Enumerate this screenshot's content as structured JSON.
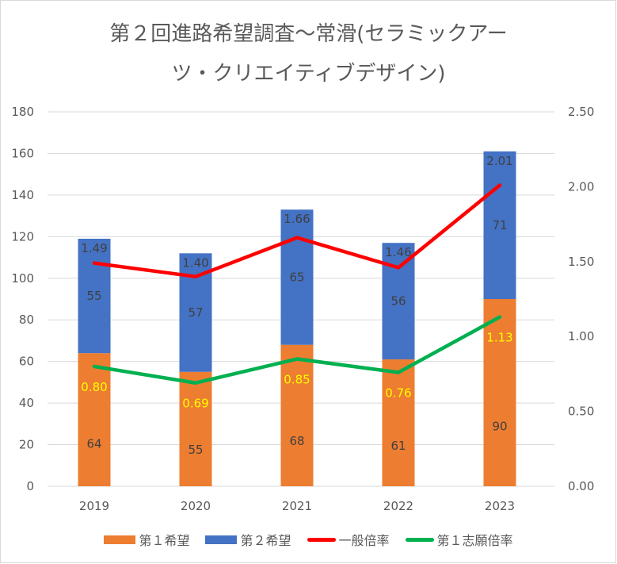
{
  "chart_data": {
    "type": "bar",
    "title_lines": [
      "第２回進路希望調査～常滑(セラミックアー",
      "ツ・クリエイティブデザイン)"
    ],
    "categories": [
      "2019",
      "2020",
      "2021",
      "2022",
      "2023"
    ],
    "stacked_series": [
      {
        "name": "第１希望",
        "color": "#ED7D31",
        "values": [
          64,
          55,
          68,
          61,
          90
        ]
      },
      {
        "name": "第２希望",
        "color": "#4472C4",
        "values": [
          55,
          57,
          65,
          56,
          71
        ]
      }
    ],
    "line_series": [
      {
        "name": "一般倍率",
        "color": "#FF0000",
        "label_color": "#404040",
        "values": [
          1.49,
          1.4,
          1.66,
          1.46,
          2.01
        ],
        "labels": [
          "1.49",
          "1.40",
          "1.66",
          "1.46",
          "2.01"
        ]
      },
      {
        "name": "第１志願倍率",
        "color": "#00B050",
        "label_color": "#FFFF00",
        "values": [
          0.8,
          0.69,
          0.85,
          0.76,
          1.13
        ],
        "labels": [
          "0.80",
          "0.69",
          "0.85",
          "0.76",
          "1.13"
        ]
      }
    ],
    "left_axis": {
      "min": 0,
      "max": 180,
      "step": 20,
      "ticks": [
        "0",
        "20",
        "40",
        "60",
        "80",
        "100",
        "120",
        "140",
        "160",
        "180"
      ]
    },
    "right_axis": {
      "min": 0,
      "max": 2.5,
      "step": 0.5,
      "ticks": [
        "0.00",
        "0.50",
        "1.00",
        "1.50",
        "2.00",
        "2.50"
      ]
    },
    "grid": true,
    "legend_position": "bottom",
    "legend": [
      "第１希望",
      "第２希望",
      "一般倍率",
      "第１志願倍率"
    ]
  }
}
